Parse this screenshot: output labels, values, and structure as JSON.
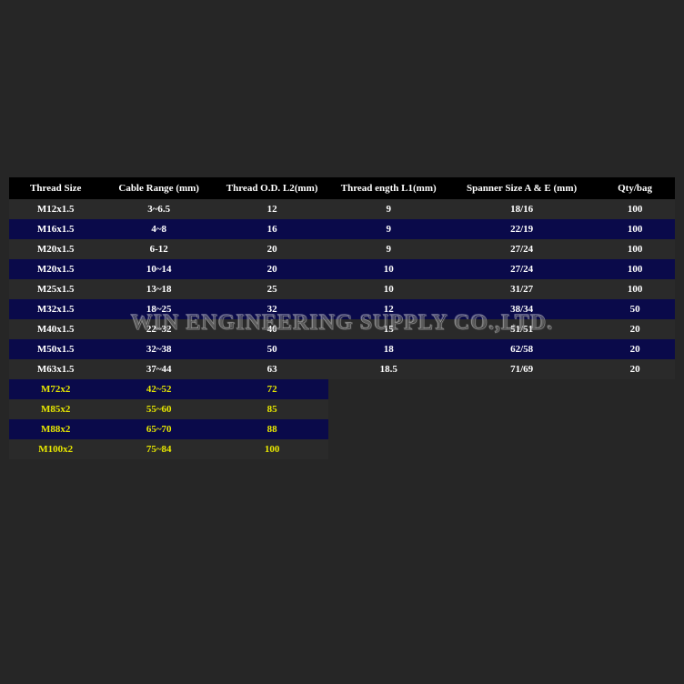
{
  "watermark": "WIN ENGINEERING SUPPLY CO.,LTD.",
  "table": {
    "columns": [
      "Thread Size",
      "Cable Range (mm)",
      "Thread O.D. L2(mm)",
      "Thread ength L1(mm)",
      "Spanner Size A & E (mm)",
      "Qty/bag"
    ],
    "rows": [
      {
        "style": "dark",
        "yellow": false,
        "cells": [
          "M12x1.5",
          "3~6.5",
          "12",
          "9",
          "18/16",
          "100"
        ]
      },
      {
        "style": "blue",
        "yellow": false,
        "cells": [
          "M16x1.5",
          "4~8",
          "16",
          "9",
          "22/19",
          "100"
        ]
      },
      {
        "style": "dark",
        "yellow": false,
        "cells": [
          "M20x1.5",
          "6-12",
          "20",
          "9",
          "27/24",
          "100"
        ]
      },
      {
        "style": "blue",
        "yellow": false,
        "cells": [
          "M20x1.5",
          "10~14",
          "20",
          "10",
          "27/24",
          "100"
        ]
      },
      {
        "style": "dark",
        "yellow": false,
        "cells": [
          "M25x1.5",
          "13~18",
          "25",
          "10",
          "31/27",
          "100"
        ]
      },
      {
        "style": "blue",
        "yellow": false,
        "cells": [
          "M32x1.5",
          "18~25",
          "32",
          "12",
          "38/34",
          "50"
        ]
      },
      {
        "style": "dark",
        "yellow": false,
        "cells": [
          "M40x1.5",
          "22~32",
          "40",
          "15",
          "51/51",
          "20"
        ]
      },
      {
        "style": "blue",
        "yellow": false,
        "cells": [
          "M50x1.5",
          "32~38",
          "50",
          "18",
          "62/58",
          "20"
        ]
      },
      {
        "style": "dark",
        "yellow": false,
        "cells": [
          "M63x1.5",
          "37~44",
          "63",
          "18.5",
          "71/69",
          "20"
        ]
      },
      {
        "style": "blue",
        "yellow": true,
        "cells": [
          "M72x2",
          "42~52",
          "72",
          "",
          "",
          ""
        ]
      },
      {
        "style": "dark",
        "yellow": true,
        "cells": [
          "M85x2",
          "55~60",
          "85",
          "",
          "",
          ""
        ]
      },
      {
        "style": "blue",
        "yellow": true,
        "cells": [
          "M88x2",
          "65~70",
          "88",
          "",
          "",
          ""
        ]
      },
      {
        "style": "dark",
        "yellow": true,
        "cells": [
          "M100x2",
          "75~84",
          "100",
          "",
          "",
          ""
        ]
      }
    ],
    "header_bg": "#000000",
    "row_dark_bg": "#2a2a2a",
    "row_blue_bg": "#0a0a4a",
    "text_color": "#ffffff",
    "yellow_text": "#e8e800",
    "page_bg": "#262626"
  }
}
